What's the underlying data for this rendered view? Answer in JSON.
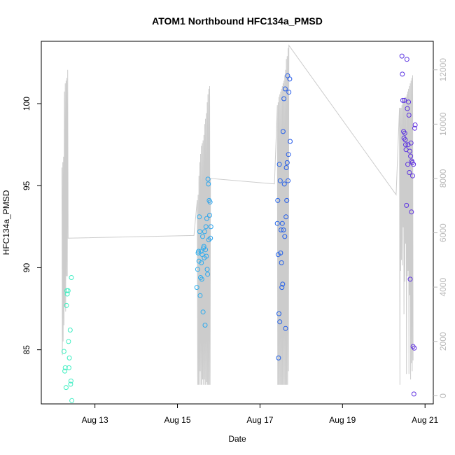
{
  "chart_data": {
    "type": "scatter",
    "title": "ATOM1 Northbound HFC134a_PMSD",
    "xlabel": "Date",
    "ylabel": "HFC134a_PMSD",
    "x_ticks": [
      "Aug 13",
      "Aug 15",
      "Aug 17",
      "Aug 19",
      "Aug 21"
    ],
    "x_tick_days": [
      13,
      15,
      17,
      19,
      21
    ],
    "xlim_days": [
      11.7,
      21.2
    ],
    "ylim": [
      81.7,
      103.8
    ],
    "y_ticks": [
      85,
      90,
      95,
      100
    ],
    "y2_ticks": [
      0,
      2000,
      4000,
      6000,
      8000,
      10000,
      12000
    ],
    "y2lim": [
      -300,
      13050
    ],
    "grid": false,
    "legend": "none",
    "point_colors": [
      "#40f0c0",
      "#30c0f0",
      "#2050e8",
      "#6030e0"
    ],
    "line_color": "#cccccc",
    "right_axis_color": "#b8b8b8",
    "points": [
      [
        12.25,
        84.9
      ],
      [
        12.27,
        83.7
      ],
      [
        12.28,
        83.9
      ],
      [
        12.3,
        82.7
      ],
      [
        12.31,
        87.7
      ],
      [
        12.32,
        88.6
      ],
      [
        12.33,
        88.4
      ],
      [
        12.35,
        88.6
      ],
      [
        12.36,
        85.5
      ],
      [
        12.37,
        83.9
      ],
      [
        12.38,
        84.5
      ],
      [
        12.4,
        86.2
      ],
      [
        12.41,
        82.9
      ],
      [
        12.42,
        83.1
      ],
      [
        12.43,
        89.4
      ],
      [
        12.44,
        81.9
      ],
      [
        15.47,
        88.8
      ],
      [
        15.49,
        89.9
      ],
      [
        15.5,
        90.9
      ],
      [
        15.51,
        91.0
      ],
      [
        15.52,
        90.4
      ],
      [
        15.53,
        93.1
      ],
      [
        15.54,
        92.2
      ],
      [
        15.55,
        88.3
      ],
      [
        15.56,
        89.4
      ],
      [
        15.57,
        91.0
      ],
      [
        15.58,
        90.3
      ],
      [
        15.59,
        89.3
      ],
      [
        15.6,
        90.8
      ],
      [
        15.61,
        91.9
      ],
      [
        15.62,
        87.3
      ],
      [
        15.63,
        91.2
      ],
      [
        15.64,
        91.3
      ],
      [
        15.65,
        90.6
      ],
      [
        15.66,
        92.2
      ],
      [
        15.67,
        86.5
      ],
      [
        15.68,
        91.1
      ],
      [
        15.69,
        92.5
      ],
      [
        15.7,
        90.7
      ],
      [
        15.71,
        93.0
      ],
      [
        15.72,
        89.9
      ],
      [
        15.73,
        89.6
      ],
      [
        15.74,
        95.4
      ],
      [
        15.75,
        95.1
      ],
      [
        15.76,
        91.7
      ],
      [
        15.77,
        94.1
      ],
      [
        15.78,
        93.2
      ],
      [
        15.79,
        94.0
      ],
      [
        15.8,
        91.8
      ],
      [
        15.81,
        92.5
      ],
      [
        17.42,
        92.7
      ],
      [
        17.43,
        94.1
      ],
      [
        17.44,
        90.8
      ],
      [
        17.45,
        84.5
      ],
      [
        17.46,
        87.2
      ],
      [
        17.47,
        96.3
      ],
      [
        17.48,
        86.7
      ],
      [
        17.49,
        95.3
      ],
      [
        17.5,
        90.9
      ],
      [
        17.51,
        92.3
      ],
      [
        17.52,
        90.3
      ],
      [
        17.53,
        88.8
      ],
      [
        17.54,
        92.7
      ],
      [
        17.55,
        89.0
      ],
      [
        17.56,
        98.3
      ],
      [
        17.57,
        92.3
      ],
      [
        17.58,
        100.3
      ],
      [
        17.59,
        95.1
      ],
      [
        17.6,
        91.9
      ],
      [
        17.61,
        100.9
      ],
      [
        17.62,
        86.3
      ],
      [
        17.63,
        93.1
      ],
      [
        17.64,
        96.1
      ],
      [
        17.65,
        94.1
      ],
      [
        17.66,
        96.4
      ],
      [
        17.67,
        101.7
      ],
      [
        17.68,
        95.3
      ],
      [
        17.69,
        96.9
      ],
      [
        17.7,
        100.7
      ],
      [
        17.72,
        101.5
      ],
      [
        17.73,
        97.7
      ],
      [
        20.44,
        102.9
      ],
      [
        20.45,
        101.8
      ],
      [
        20.46,
        100.2
      ],
      [
        20.48,
        98.3
      ],
      [
        20.49,
        97.9
      ],
      [
        20.5,
        100.2
      ],
      [
        20.51,
        98.2
      ],
      [
        20.52,
        97.8
      ],
      [
        20.53,
        97.5
      ],
      [
        20.54,
        97.2
      ],
      [
        20.55,
        93.8
      ],
      [
        20.56,
        102.7
      ],
      [
        20.57,
        99.7
      ],
      [
        20.58,
        96.3
      ],
      [
        20.59,
        97.5
      ],
      [
        20.6,
        100.1
      ],
      [
        20.61,
        99.3
      ],
      [
        20.62,
        95.8
      ],
      [
        20.63,
        97.1
      ],
      [
        20.64,
        89.3
      ],
      [
        20.65,
        96.8
      ],
      [
        20.66,
        97.6
      ],
      [
        20.67,
        93.4
      ],
      [
        20.68,
        96.5
      ],
      [
        20.69,
        96.4
      ],
      [
        20.7,
        95.6
      ],
      [
        20.71,
        85.2
      ],
      [
        20.72,
        96.3
      ],
      [
        20.73,
        82.3
      ],
      [
        20.74,
        85.1
      ],
      [
        20.75,
        98.5
      ],
      [
        20.76,
        98.7
      ]
    ],
    "line_series": [
      [
        12.2,
        8400
      ],
      [
        12.21,
        1500
      ],
      [
        12.22,
        8600
      ],
      [
        12.23,
        2000
      ],
      [
        12.24,
        8800
      ],
      [
        12.25,
        2600
      ],
      [
        12.26,
        11200
      ],
      [
        12.27,
        3300
      ],
      [
        12.28,
        11500
      ],
      [
        12.29,
        3100
      ],
      [
        12.3,
        11600
      ],
      [
        12.31,
        4400
      ],
      [
        12.32,
        11700
      ],
      [
        12.33,
        4400
      ],
      [
        12.34,
        12000
      ],
      [
        12.35,
        5800
      ],
      [
        15.4,
        5900
      ],
      [
        15.48,
        7200
      ],
      [
        15.49,
        400
      ],
      [
        15.5,
        7400
      ],
      [
        15.51,
        400
      ],
      [
        15.52,
        8100
      ],
      [
        15.53,
        400
      ],
      [
        15.54,
        8600
      ],
      [
        15.55,
        900
      ],
      [
        15.56,
        8900
      ],
      [
        15.57,
        400
      ],
      [
        15.58,
        9200
      ],
      [
        15.59,
        400
      ],
      [
        15.6,
        9300
      ],
      [
        15.61,
        600
      ],
      [
        15.62,
        9400
      ],
      [
        15.63,
        400
      ],
      [
        15.64,
        9600
      ],
      [
        15.65,
        600
      ],
      [
        15.66,
        10000
      ],
      [
        15.67,
        400
      ],
      [
        15.68,
        10200
      ],
      [
        15.69,
        400
      ],
      [
        15.7,
        10400
      ],
      [
        15.71,
        500
      ],
      [
        15.72,
        10800
      ],
      [
        15.73,
        400
      ],
      [
        15.74,
        11100
      ],
      [
        15.75,
        400
      ],
      [
        15.76,
        11300
      ],
      [
        15.77,
        400
      ],
      [
        15.78,
        11400
      ],
      [
        15.79,
        400
      ],
      [
        15.8,
        8000
      ],
      [
        17.35,
        7800
      ],
      [
        17.42,
        10700
      ],
      [
        17.43,
        400
      ],
      [
        17.44,
        10800
      ],
      [
        17.45,
        400
      ],
      [
        17.46,
        11000
      ],
      [
        17.47,
        400
      ],
      [
        17.48,
        11100
      ],
      [
        17.49,
        400
      ],
      [
        17.5,
        11200
      ],
      [
        17.51,
        400
      ],
      [
        17.52,
        11300
      ],
      [
        17.53,
        400
      ],
      [
        17.54,
        11400
      ],
      [
        17.55,
        400
      ],
      [
        17.56,
        11500
      ],
      [
        17.57,
        400
      ],
      [
        17.58,
        11600
      ],
      [
        17.59,
        400
      ],
      [
        17.6,
        11800
      ],
      [
        17.61,
        400
      ],
      [
        17.62,
        12000
      ],
      [
        17.63,
        400
      ],
      [
        17.64,
        12400
      ],
      [
        17.65,
        400
      ],
      [
        17.66,
        12500
      ],
      [
        17.67,
        400
      ],
      [
        17.68,
        12800
      ],
      [
        17.69,
        900
      ],
      [
        17.7,
        12900
      ],
      [
        20.3,
        7400
      ],
      [
        20.38,
        10600
      ],
      [
        20.39,
        400
      ],
      [
        20.4,
        10600
      ],
      [
        20.41,
        4600
      ],
      [
        20.42,
        10600
      ],
      [
        20.43,
        5000
      ],
      [
        20.44,
        10700
      ],
      [
        20.45,
        4800
      ],
      [
        20.46,
        10800
      ],
      [
        20.47,
        6200
      ],
      [
        20.48,
        10900
      ],
      [
        20.49,
        3000
      ],
      [
        20.5,
        10900
      ],
      [
        20.51,
        4200
      ],
      [
        20.52,
        11000
      ],
      [
        20.53,
        5600
      ],
      [
        20.54,
        11000
      ],
      [
        20.55,
        800
      ],
      [
        20.56,
        11100
      ],
      [
        20.57,
        4400
      ],
      [
        20.58,
        11200
      ],
      [
        20.59,
        4600
      ],
      [
        20.6,
        11300
      ],
      [
        20.61,
        800
      ],
      [
        20.62,
        11400
      ],
      [
        20.63,
        3700
      ],
      [
        20.64,
        11500
      ],
      [
        20.65,
        600
      ],
      [
        20.66,
        11600
      ],
      [
        20.67,
        1200
      ],
      [
        20.68,
        11700
      ],
      [
        20.69,
        900
      ],
      [
        20.7,
        11800
      ],
      [
        20.71,
        1300
      ]
    ]
  }
}
